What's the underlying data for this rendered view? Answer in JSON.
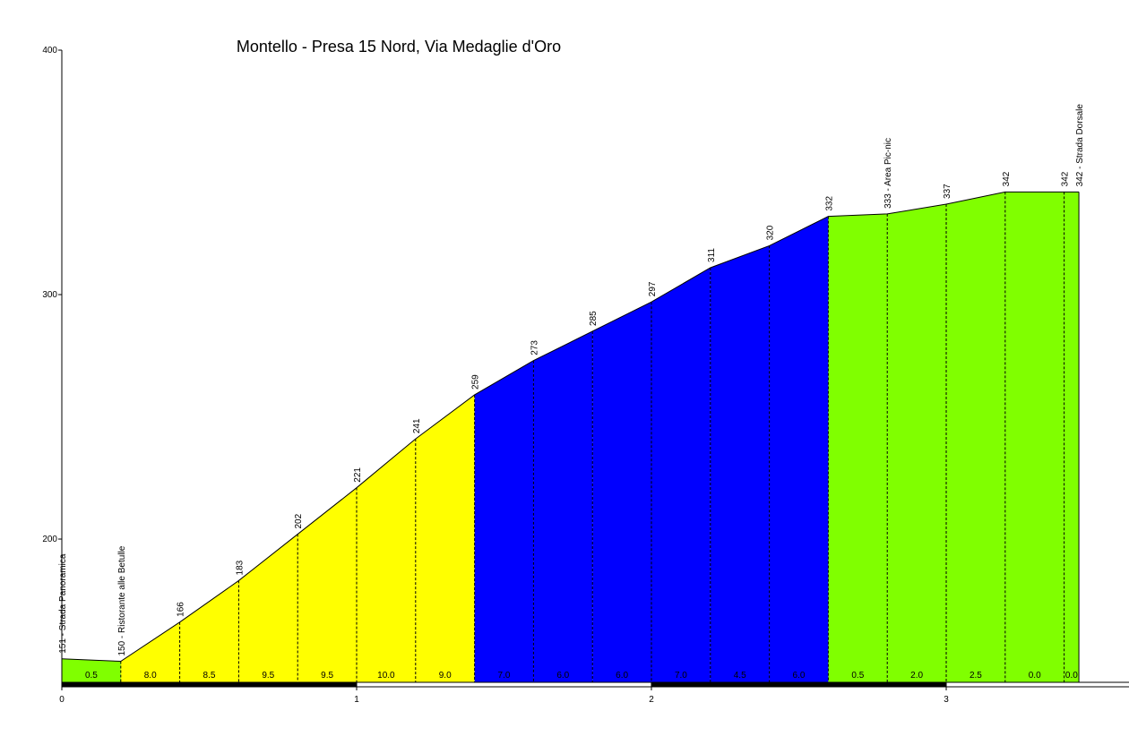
{
  "chart_data": {
    "type": "elevation-profile",
    "title": "Montello - Presa 15 Nord,  Via Medaglie d'Oro",
    "x": [
      0,
      0.2,
      0.4,
      0.6,
      0.8,
      1.0,
      1.2,
      1.4,
      1.6,
      1.8,
      2.0,
      2.2,
      2.4,
      2.6,
      2.8,
      3.0,
      3.2,
      3.4,
      3.45
    ],
    "values": [
      151,
      150,
      166,
      183,
      202,
      221,
      241,
      259,
      273,
      285,
      297,
      311,
      320,
      332,
      333,
      337,
      342,
      342,
      342
    ],
    "value_labels": [
      "151 - Strada Panoramica",
      "150 - Ristorante alle Betulle",
      "166",
      "183",
      "202",
      "221",
      "241",
      "259",
      "273",
      "285",
      "297",
      "311",
      "320",
      "332",
      "333 - Area Pic-nic",
      "337",
      "342",
      "342",
      "342 - Strada Dorsale"
    ],
    "segments": {
      "grades": [
        0.5,
        8.0,
        8.5,
        9.5,
        9.5,
        10.0,
        9.0,
        7.0,
        6.0,
        6.0,
        7.0,
        4.5,
        6.0,
        0.5,
        2.0,
        2.5,
        0.0,
        0.0
      ],
      "grade_labels": [
        "0.5",
        "8.0",
        "8.5",
        "9.5",
        "9.5",
        "10.0",
        "9.0",
        "7.0",
        "6.0",
        "6.0",
        "7.0",
        "4.5",
        "6.0",
        "0.5",
        "2.0",
        "2.5",
        "0.0",
        "0.0"
      ],
      "colors": [
        "#80ff00",
        "#ffff00",
        "#ffff00",
        "#ffff00",
        "#ffff00",
        "#ffff00",
        "#ffff00",
        "#0000ff",
        "#0000ff",
        "#0000ff",
        "#0000ff",
        "#0000ff",
        "#0000ff",
        "#80ff00",
        "#80ff00",
        "#80ff00",
        "#80ff00",
        "#80ff00"
      ]
    },
    "xlim": [
      0,
      3.62
    ],
    "ylim": [
      141.4,
      400
    ],
    "xticks": [
      0,
      1,
      2,
      3
    ],
    "yticks": [
      200,
      300,
      400
    ]
  }
}
